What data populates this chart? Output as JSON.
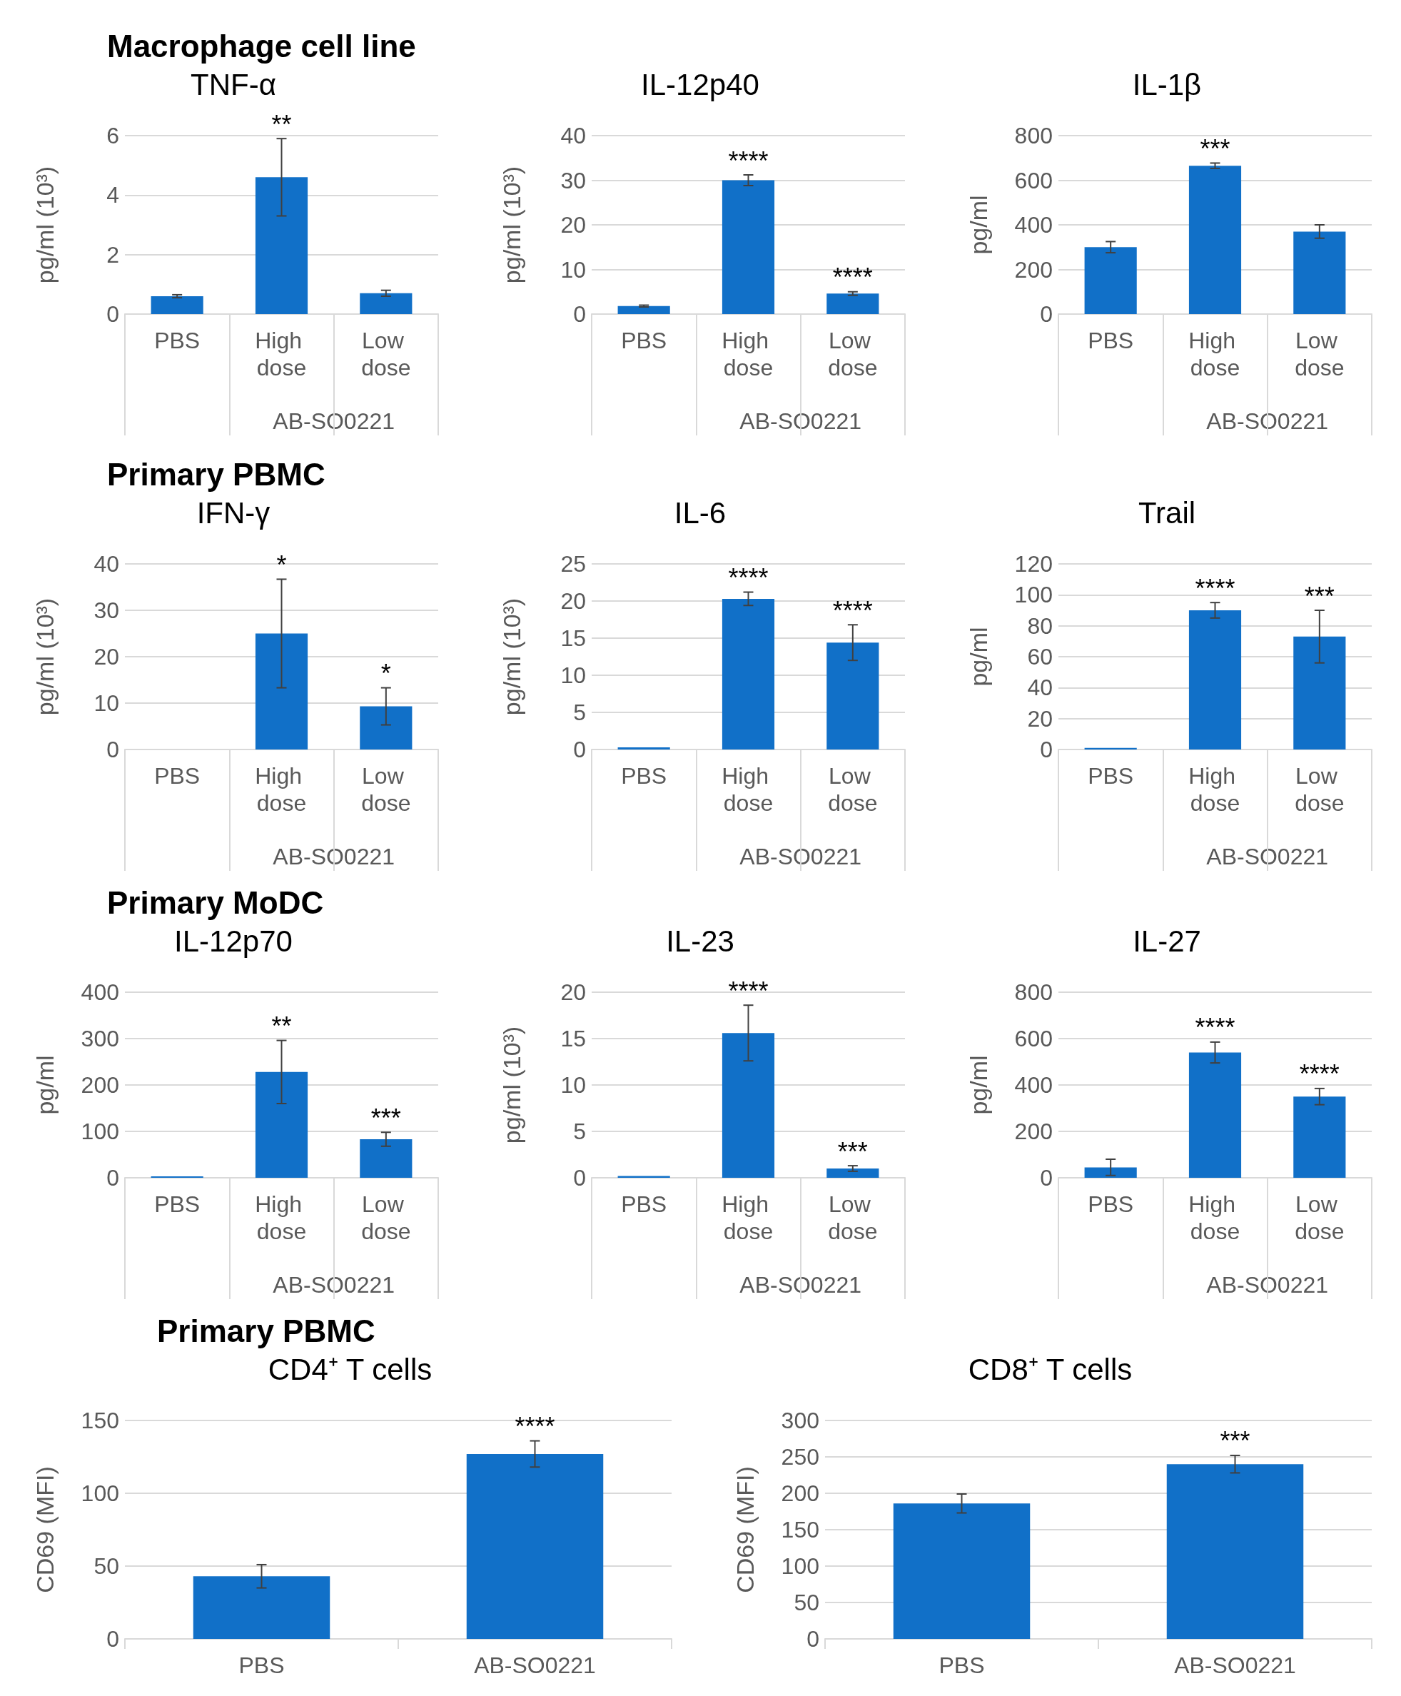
{
  "chart_data": [
    {
      "type": "bar",
      "title": "TNF-α",
      "ylabel": "pg/ml (10³)",
      "xlabel": "AB-SO0221",
      "categories": [
        "PBS",
        "High dose",
        "Low dose"
      ],
      "values": [
        0.6,
        4.6,
        0.7
      ],
      "errors": [
        0.05,
        1.3,
        0.1
      ],
      "color": "#1170c8",
      "ylim": [
        0,
        6
      ],
      "yticks": [
        0,
        2,
        4,
        6
      ],
      "grid": "y",
      "annotations": [
        "Macrophage cell line",
        {
          "text": "**",
          "x": "High dose",
          "y": 5.9
        }
      ]
    },
    {
      "type": "bar",
      "title": "IL-12p40",
      "ylabel": "pg/ml (10³)",
      "xlabel": "AB-SO0221",
      "categories": [
        "PBS",
        "High dose",
        "Low dose"
      ],
      "values": [
        1.8,
        30,
        4.6
      ],
      "errors": [
        0.2,
        1.2,
        0.4
      ],
      "color": "#1170c8",
      "ylim": [
        0,
        40
      ],
      "yticks": [
        0,
        10,
        20,
        30,
        40
      ],
      "grid": "y",
      "annotations": [
        {
          "text": "****",
          "x": "High dose",
          "y": 31.2
        },
        {
          "text": "****",
          "x": "Low dose",
          "y": 5
        }
      ]
    },
    {
      "type": "bar",
      "title": "IL-1β",
      "ylabel": "pg/ml",
      "xlabel": "AB-SO0221",
      "categories": [
        "PBS",
        "High dose",
        "Low dose"
      ],
      "values": [
        300,
        665,
        370
      ],
      "errors": [
        25,
        12,
        30
      ],
      "color": "#1170c8",
      "ylim": [
        0,
        800
      ],
      "yticks": [
        0,
        200,
        400,
        600,
        800
      ],
      "grid": "y",
      "annotations": [
        {
          "text": "***",
          "x": "High dose",
          "y": 677
        }
      ]
    },
    {
      "type": "bar",
      "title": "IFN-γ",
      "ylabel": "pg/ml (10³)",
      "xlabel": "AB-SO0221",
      "categories": [
        "PBS",
        "High dose",
        "Low dose"
      ],
      "values": [
        0,
        25,
        9.3
      ],
      "errors": [
        null,
        11.7,
        4
      ],
      "color": "#1170c8",
      "ylim": [
        0,
        40
      ],
      "yticks": [
        0,
        10,
        20,
        30,
        40
      ],
      "grid": "y",
      "annotations": [
        "Primary PBMC",
        {
          "text": "*",
          "x": "High dose",
          "y": 36.7
        },
        {
          "text": "*",
          "x": "Low dose",
          "y": 13.3
        }
      ]
    },
    {
      "type": "bar",
      "title": "IL-6",
      "ylabel": "pg/ml (10³)",
      "xlabel": "AB-SO0221",
      "categories": [
        "PBS",
        "High dose",
        "Low dose"
      ],
      "values": [
        0.3,
        20.3,
        14.4
      ],
      "errors": [
        null,
        0.9,
        2.4
      ],
      "color": "#1170c8",
      "ylim": [
        0,
        25
      ],
      "yticks": [
        0,
        5,
        10,
        15,
        20,
        25
      ],
      "grid": "y",
      "annotations": [
        {
          "text": "****",
          "x": "High dose",
          "y": 21.2
        },
        {
          "text": "****",
          "x": "Low dose",
          "y": 16.8
        }
      ]
    },
    {
      "type": "bar",
      "title": "Trail",
      "ylabel": "pg/ml",
      "xlabel": "AB-SO0221",
      "categories": [
        "PBS",
        "High dose",
        "Low dose"
      ],
      "values": [
        1,
        90,
        73
      ],
      "errors": [
        null,
        5,
        17
      ],
      "color": "#1170c8",
      "ylim": [
        0,
        120
      ],
      "yticks": [
        0,
        20,
        40,
        60,
        80,
        100,
        120
      ],
      "grid": "y",
      "annotations": [
        {
          "text": "****",
          "x": "High dose",
          "y": 95
        },
        {
          "text": "***",
          "x": "Low dose",
          "y": 90
        }
      ]
    },
    {
      "type": "bar",
      "title": "IL-12p70",
      "ylabel": "pg/ml",
      "xlabel": "AB-SO0221",
      "categories": [
        "PBS",
        "High dose",
        "Low dose"
      ],
      "values": [
        3,
        228,
        83
      ],
      "errors": [
        null,
        68,
        15
      ],
      "color": "#1170c8",
      "ylim": [
        0,
        400
      ],
      "yticks": [
        0,
        100,
        200,
        300,
        400
      ],
      "grid": "y",
      "annotations": [
        "Primary MoDC",
        {
          "text": "**",
          "x": "High dose",
          "y": 296
        },
        {
          "text": "***",
          "x": "Low dose",
          "y": 98
        }
      ]
    },
    {
      "type": "bar",
      "title": "IL-23",
      "ylabel": "pg/ml (10³)",
      "xlabel": "AB-SO0221",
      "categories": [
        "PBS",
        "High dose",
        "Low dose"
      ],
      "values": [
        0.2,
        15.6,
        1
      ],
      "errors": [
        null,
        3,
        0.3
      ],
      "color": "#1170c8",
      "ylim": [
        0,
        20
      ],
      "yticks": [
        0,
        5,
        10,
        15,
        20
      ],
      "grid": "y",
      "annotations": [
        {
          "text": "****",
          "x": "High dose",
          "y": 18.6
        },
        {
          "text": "***",
          "x": "Low dose",
          "y": 1.3
        }
      ]
    },
    {
      "type": "bar",
      "title": "IL-27",
      "ylabel": "pg/ml",
      "xlabel": "AB-SO0221",
      "categories": [
        "PBS",
        "High dose",
        "Low dose"
      ],
      "values": [
        45,
        540,
        350
      ],
      "errors": [
        35,
        45,
        35
      ],
      "color": "#1170c8",
      "ylim": [
        0,
        800
      ],
      "yticks": [
        0,
        200,
        400,
        600,
        800
      ],
      "grid": "y",
      "annotations": [
        {
          "text": "****",
          "x": "High dose",
          "y": 585
        },
        {
          "text": "****",
          "x": "Low dose",
          "y": 385
        }
      ]
    },
    {
      "type": "bar",
      "title": "CD4⁺ T cells",
      "ylabel": "CD69 (MFI)",
      "categories": [
        "PBS",
        "AB-SO0221"
      ],
      "values": [
        43,
        127
      ],
      "errors": [
        8,
        9
      ],
      "color": "#1170c8",
      "ylim": [
        0,
        150
      ],
      "yticks": [
        0,
        50,
        100,
        150
      ],
      "grid": "y",
      "annotations": [
        "Primary PBMC",
        {
          "text": "****",
          "x": "AB-SO0221",
          "y": 136
        }
      ]
    },
    {
      "type": "bar",
      "title": "CD8⁺ T cells",
      "ylabel": "CD69 (MFI)",
      "categories": [
        "PBS",
        "AB-SO0221"
      ],
      "values": [
        186,
        240
      ],
      "errors": [
        13,
        12
      ],
      "color": "#1170c8",
      "ylim": [
        0,
        300
      ],
      "yticks": [
        0,
        50,
        100,
        150,
        200,
        250,
        300
      ],
      "grid": "y",
      "annotations": [
        {
          "text": "***",
          "x": "AB-SO0221",
          "y": 252
        }
      ]
    }
  ]
}
